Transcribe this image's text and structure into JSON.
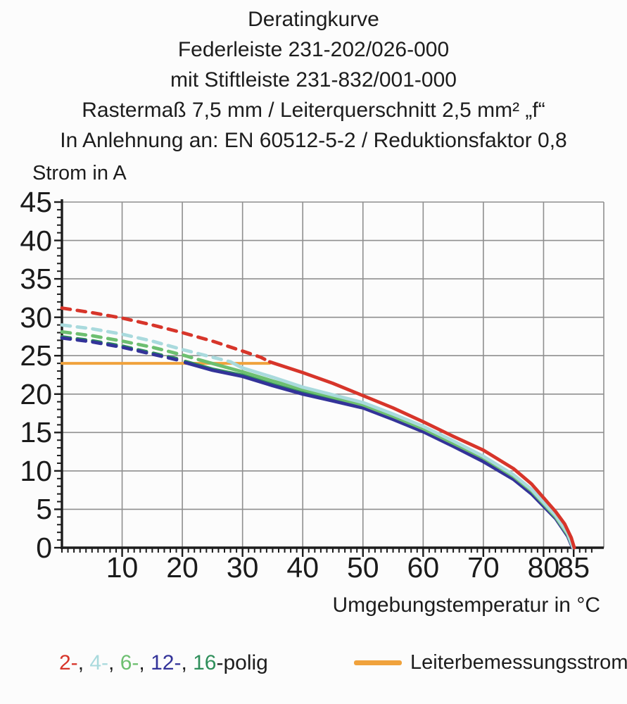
{
  "header": {
    "lines": [
      "Deratingkurve",
      "Federleiste 231-202/026-000",
      "mit Stiftleiste 231-832/001-000",
      "Rastermaß 7,5 mm / Leiterquerschnitt 2,5 mm² „f“",
      "In Anlehnung an: EN 60512-5-2 / Reduktionsfaktor 0,8"
    ]
  },
  "chart_data": {
    "type": "line",
    "title": "Deratingkurve",
    "xlabel": "Umgebungstemperatur in °C",
    "ylabel": "Strom in A",
    "xlim": [
      0,
      90
    ],
    "ylim": [
      0,
      45
    ],
    "xticks": [
      10,
      20,
      30,
      40,
      50,
      60,
      70,
      80,
      85
    ],
    "yticks": [
      0,
      5,
      10,
      15,
      20,
      25,
      30,
      35,
      40,
      45
    ],
    "x_gridlines": [
      10,
      20,
      30,
      40,
      50,
      60,
      70,
      80,
      90
    ],
    "y_gridlines": [
      5,
      10,
      15,
      20,
      25,
      30,
      35,
      40,
      45
    ],
    "minor_tick_step_x": 1,
    "minor_tick_step_y": 1,
    "grid": true,
    "grid_color": "#8f8f8f",
    "axis_color": "#1c1c1c",
    "rated_current_line": {
      "label": "Leiterbemessungsstrom",
      "value": 24,
      "x_from": 0,
      "x_to": 34.5,
      "color": "#f0a23c"
    },
    "series": [
      {
        "name": "2-polig",
        "color": "#d7352a",
        "dashed": [
          [
            0,
            31.2
          ],
          [
            5,
            30.6
          ],
          [
            10,
            29.9
          ],
          [
            15,
            29.0
          ],
          [
            20,
            28.0
          ],
          [
            25,
            26.9
          ],
          [
            30,
            25.6
          ],
          [
            33,
            24.8
          ],
          [
            34.5,
            24.2
          ]
        ],
        "solid": [
          [
            34.5,
            24.2
          ],
          [
            40,
            22.8
          ],
          [
            45,
            21.4
          ],
          [
            50,
            19.8
          ],
          [
            55,
            18.2
          ],
          [
            60,
            16.4
          ],
          [
            65,
            14.5
          ],
          [
            70,
            12.7
          ],
          [
            75,
            10.3
          ],
          [
            78,
            8.3
          ],
          [
            80,
            6.5
          ],
          [
            82,
            4.7
          ],
          [
            83.5,
            3.1
          ],
          [
            84.6,
            1.3
          ],
          [
            85.1,
            0
          ]
        ]
      },
      {
        "name": "4-polig",
        "color": "#a9dadd",
        "dashed": [
          [
            0,
            29.0
          ],
          [
            5,
            28.5
          ],
          [
            10,
            27.8
          ],
          [
            15,
            26.9
          ],
          [
            20,
            25.8
          ],
          [
            24,
            25.0
          ],
          [
            28,
            24.2
          ]
        ],
        "solid": [
          [
            28,
            24.2
          ],
          [
            30,
            23.4
          ],
          [
            35,
            22.2
          ],
          [
            40,
            20.9
          ],
          [
            45,
            19.9
          ],
          [
            50,
            18.9
          ],
          [
            55,
            17.4
          ],
          [
            60,
            15.8
          ],
          [
            65,
            13.9
          ],
          [
            70,
            11.9
          ],
          [
            75,
            9.5
          ],
          [
            78,
            7.6
          ],
          [
            80,
            5.9
          ],
          [
            82,
            4.2
          ],
          [
            84,
            1.9
          ],
          [
            84.9,
            0
          ]
        ]
      },
      {
        "name": "6-polig",
        "color": "#6dbf70",
        "dashed": [
          [
            0,
            28.1
          ],
          [
            5,
            27.6
          ],
          [
            10,
            26.9
          ],
          [
            15,
            26.1
          ],
          [
            20,
            25.1
          ],
          [
            24,
            24.2
          ]
        ],
        "solid": [
          [
            24,
            24.2
          ],
          [
            30,
            22.9
          ],
          [
            35,
            21.7
          ],
          [
            40,
            20.6
          ],
          [
            45,
            19.6
          ],
          [
            50,
            18.6
          ],
          [
            55,
            17.1
          ],
          [
            60,
            15.5
          ],
          [
            65,
            13.6
          ],
          [
            70,
            11.7
          ],
          [
            75,
            9.3
          ],
          [
            78,
            7.4
          ],
          [
            80,
            5.7
          ],
          [
            82,
            4.0
          ],
          [
            84,
            1.7
          ],
          [
            84.9,
            0
          ]
        ]
      },
      {
        "name": "12-polig",
        "color": "#333399",
        "dashed": [
          [
            0,
            27.3
          ],
          [
            5,
            26.8
          ],
          [
            10,
            26.1
          ],
          [
            15,
            25.2
          ],
          [
            20,
            24.3
          ]
        ],
        "solid": [
          [
            20.5,
            24.1
          ],
          [
            25,
            23.1
          ],
          [
            30,
            22.3
          ],
          [
            35,
            21.1
          ],
          [
            40,
            20.0
          ],
          [
            45,
            19.1
          ],
          [
            50,
            18.2
          ],
          [
            55,
            16.7
          ],
          [
            60,
            15.1
          ],
          [
            65,
            13.2
          ],
          [
            70,
            11.2
          ],
          [
            75,
            8.9
          ],
          [
            78,
            7.0
          ],
          [
            80,
            5.4
          ],
          [
            82,
            3.8
          ],
          [
            84,
            1.5
          ],
          [
            84.8,
            0
          ]
        ]
      },
      {
        "name": "16-polig",
        "color": "#2f8f5b",
        "dashed": [
          [
            0,
            27.45
          ],
          [
            5,
            26.95
          ],
          [
            10,
            26.25
          ],
          [
            15,
            25.35
          ],
          [
            20,
            24.45
          ]
        ],
        "solid": [
          [
            20.5,
            24.25
          ],
          [
            25,
            23.25
          ],
          [
            30,
            22.45
          ],
          [
            35,
            21.25
          ],
          [
            40,
            20.15
          ],
          [
            45,
            19.25
          ],
          [
            50,
            18.35
          ],
          [
            55,
            16.85
          ],
          [
            60,
            15.25
          ],
          [
            65,
            13.35
          ],
          [
            70,
            11.35
          ],
          [
            75,
            9.05
          ],
          [
            78,
            7.15
          ],
          [
            80,
            5.55
          ],
          [
            82,
            3.95
          ],
          [
            84,
            1.65
          ],
          [
            84.8,
            0.1
          ]
        ]
      }
    ]
  },
  "legend": {
    "poles": [
      {
        "label": "2-",
        "color": "#d7352a"
      },
      {
        "label": "4-",
        "color": "#a9dadd"
      },
      {
        "label": "6-",
        "color": "#6dbf70"
      },
      {
        "label": "12-",
        "color": "#333399"
      },
      {
        "label": "16",
        "color": "#2f8f5b"
      }
    ],
    "separator": ", ",
    "suffix": "-polig",
    "rated": {
      "label": "Leiterbemessungsstrom",
      "color": "#f0a23c"
    }
  }
}
